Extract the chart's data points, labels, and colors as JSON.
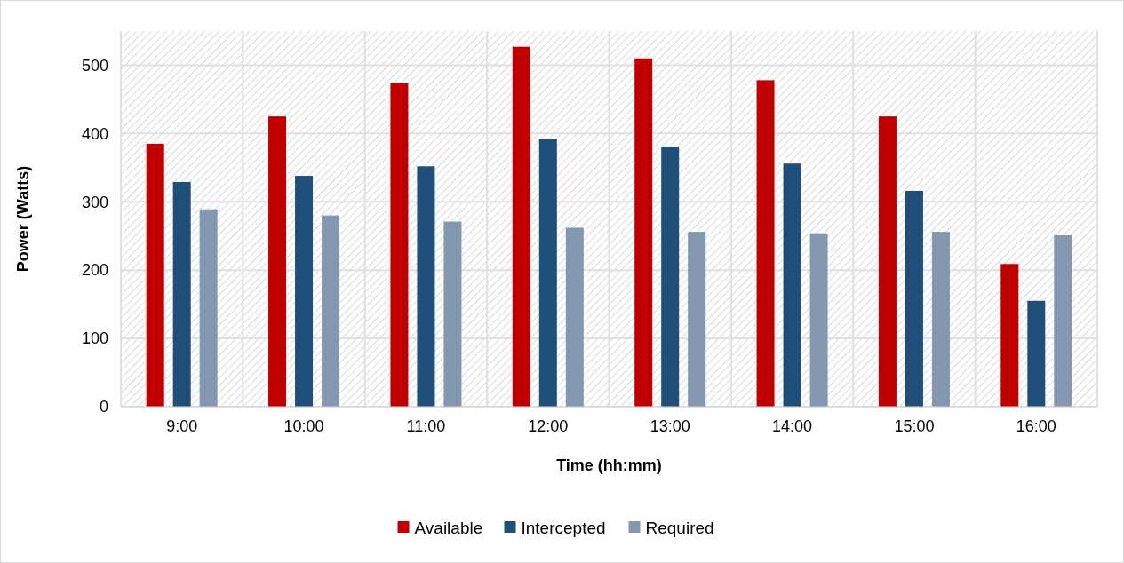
{
  "chart_data": {
    "type": "bar",
    "xlabel": "Time (hh:mm)",
    "ylabel": "Power (Watts)",
    "categories": [
      "9:00",
      "10:00",
      "11:00",
      "12:00",
      "13:00",
      "14:00",
      "15:00",
      "16:00"
    ],
    "series": [
      {
        "name": "Available",
        "color": "#c00000",
        "values": [
          385,
          425,
          474,
          527,
          510,
          478,
          425,
          209
        ]
      },
      {
        "name": "Intercepted",
        "color": "#1f4e79",
        "values": [
          329,
          338,
          352,
          392,
          381,
          356,
          316,
          155
        ]
      },
      {
        "name": "Required",
        "color": "#8497b0",
        "values": [
          289,
          280,
          271,
          262,
          256,
          254,
          256,
          251
        ]
      }
    ],
    "ylim": [
      0,
      550
    ],
    "yticks": [
      0,
      100,
      200,
      300,
      400,
      500
    ],
    "grid": true,
    "legend": "bottom"
  }
}
